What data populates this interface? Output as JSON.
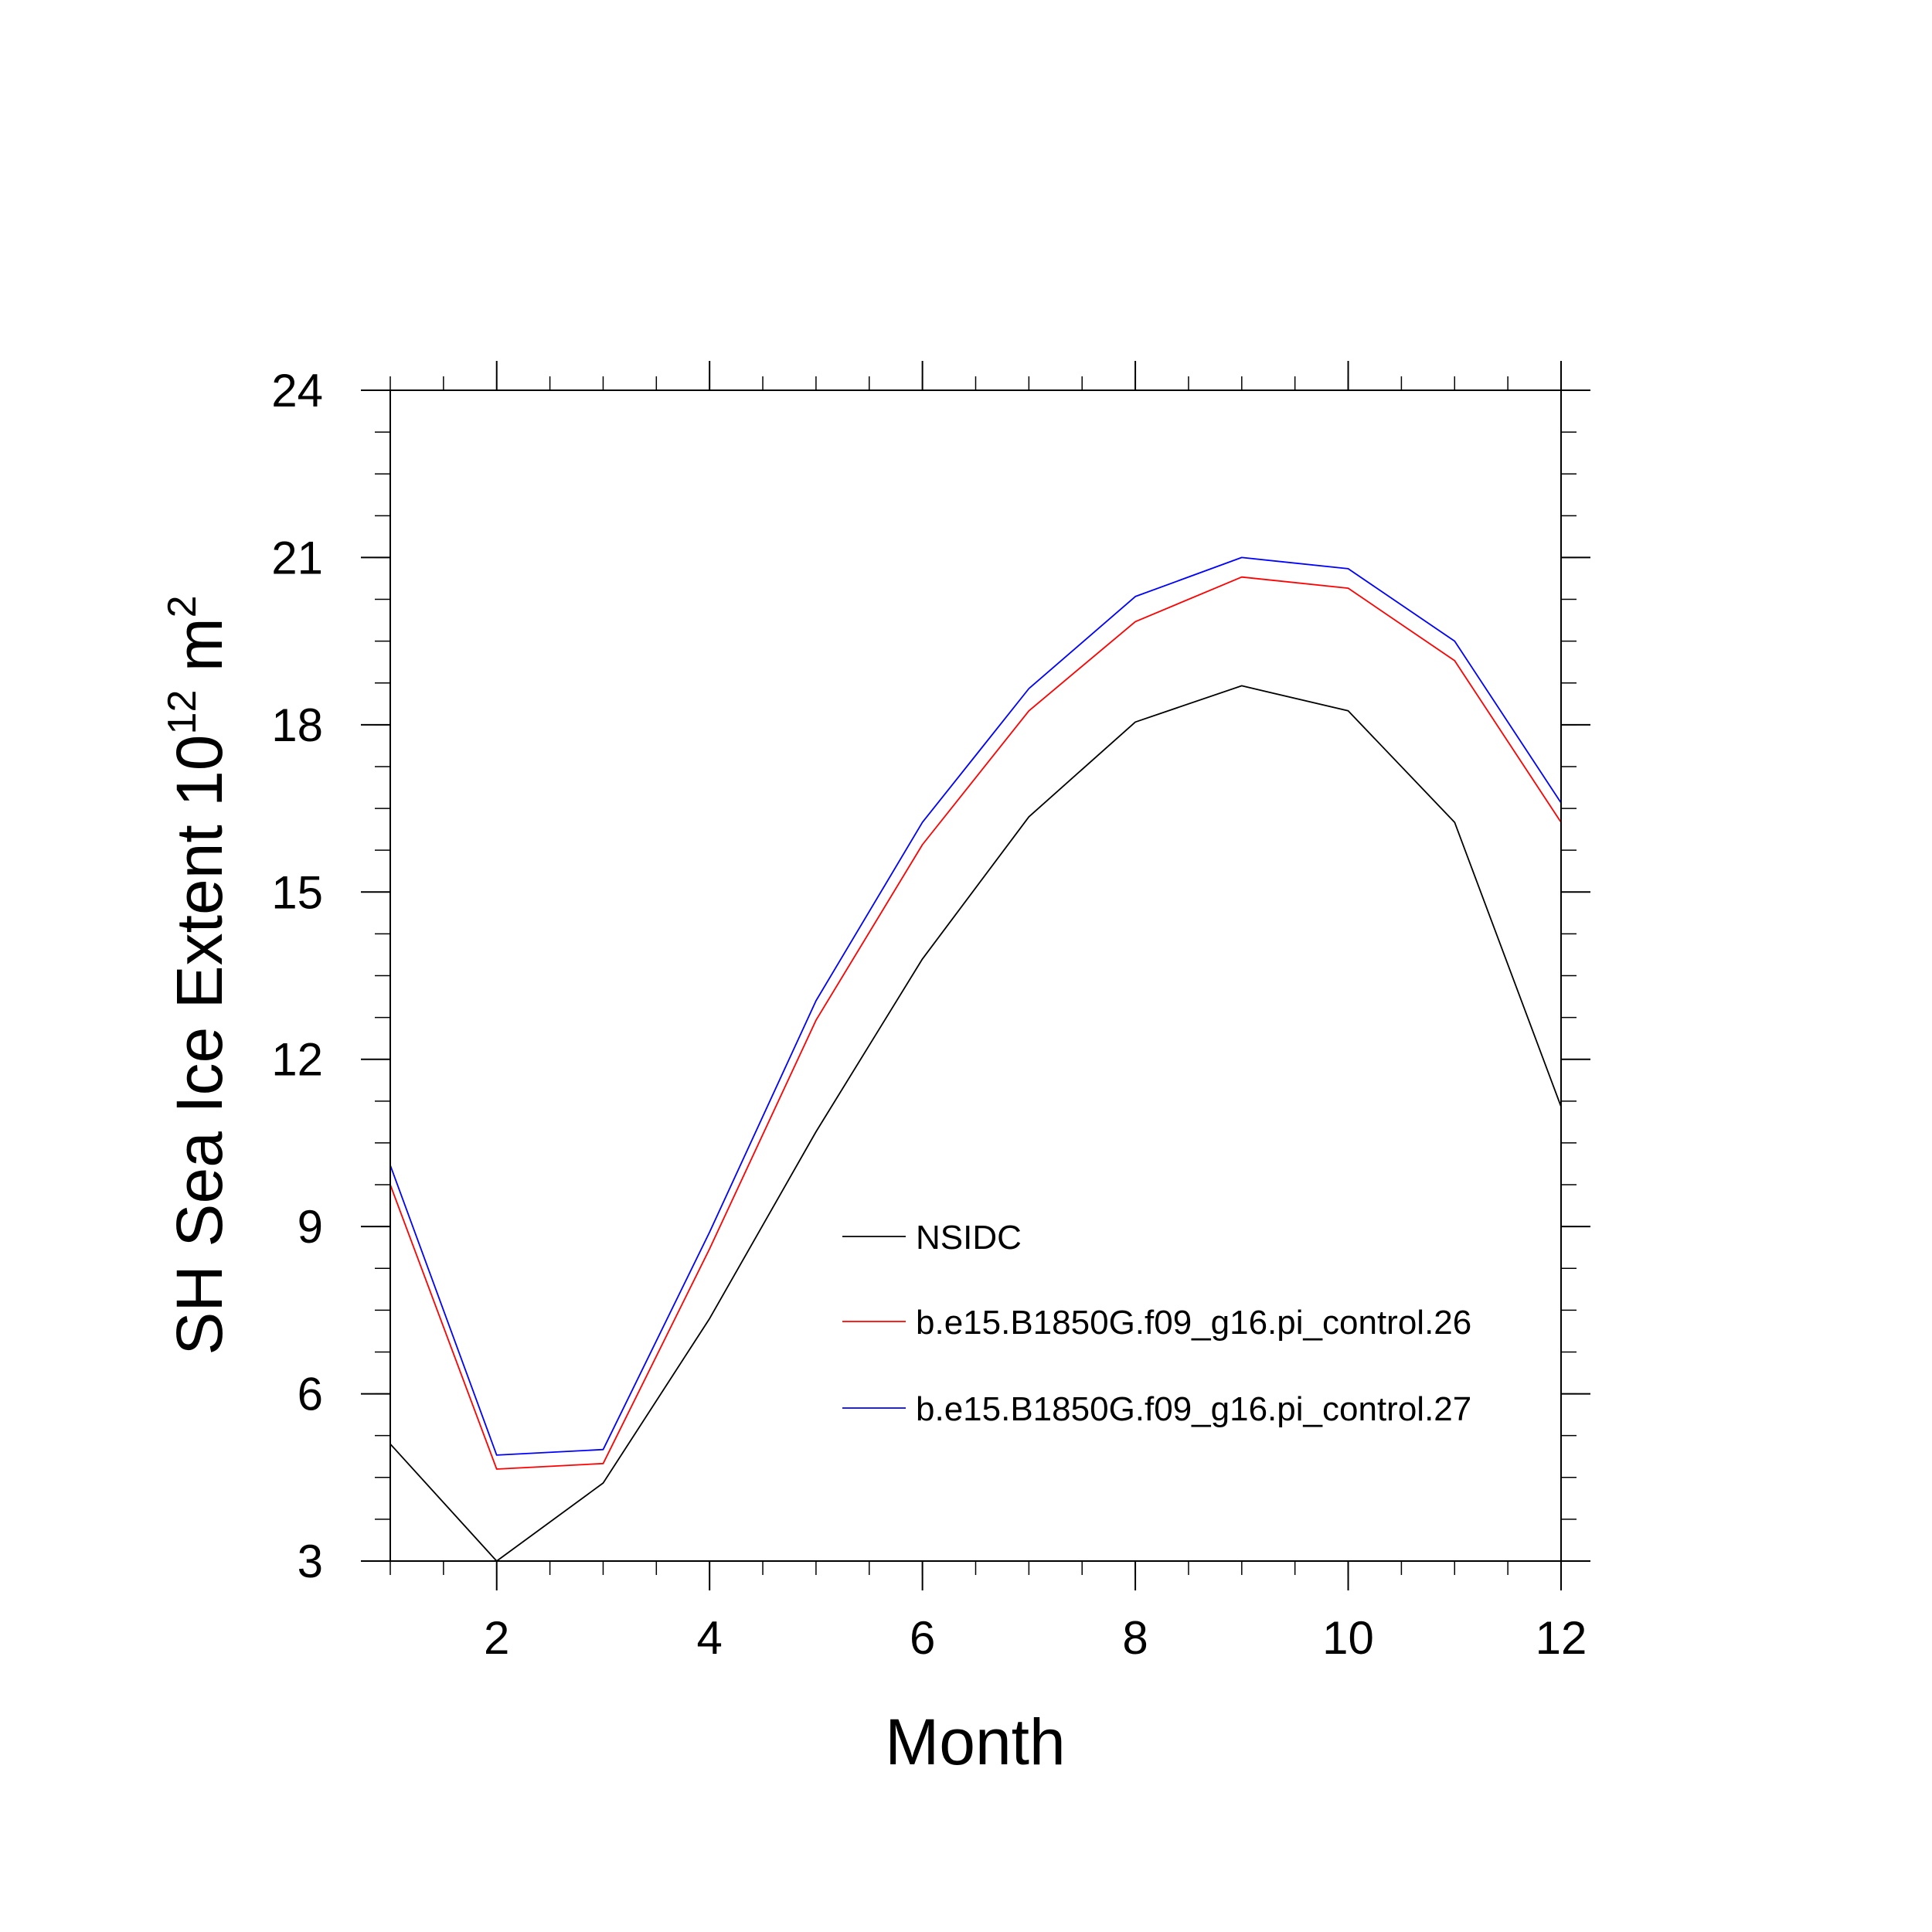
{
  "chart_data": {
    "type": "line",
    "title": "",
    "xlabel": "Month",
    "ylabel": {
      "main": "SH Sea Ice Extent 10",
      "superscript": "12",
      "unit": " m",
      "unit_superscript": "2"
    },
    "xlim": [
      1,
      12
    ],
    "ylim": [
      3,
      24
    ],
    "xticks": [
      2,
      4,
      6,
      8,
      10,
      12
    ],
    "xtick_labels": [
      "2",
      "4",
      "6",
      "8",
      "10",
      "12"
    ],
    "yticks": [
      3,
      6,
      9,
      12,
      15,
      18,
      21,
      24
    ],
    "ytick_labels": [
      "3",
      "6",
      "9",
      "12",
      "15",
      "18",
      "21",
      "24"
    ],
    "grid": false,
    "legend_position": "lower-right inside",
    "x": [
      1,
      2,
      3,
      4,
      5,
      6,
      7,
      8,
      9,
      10,
      11,
      12
    ],
    "series": [
      {
        "name": "NSIDC",
        "color": "#000000",
        "values": [
          5.1,
          3.0,
          4.4,
          7.35,
          10.7,
          13.8,
          16.35,
          18.05,
          18.7,
          18.25,
          16.25,
          11.15
        ]
      },
      {
        "name": "b.e15.B1850G.f09_g16.pi_control.26",
        "color": "#ff0000",
        "values": [
          9.75,
          4.65,
          4.75,
          8.6,
          12.7,
          15.85,
          18.25,
          19.85,
          20.65,
          20.45,
          19.15,
          16.25
        ]
      },
      {
        "name": "b.e15.B1850G.f09_g16.pi_control.27",
        "color": "#0000ff",
        "values": [
          10.1,
          4.9,
          5.0,
          8.9,
          13.05,
          16.25,
          18.65,
          20.3,
          21.0,
          20.8,
          19.5,
          16.6
        ]
      }
    ]
  }
}
